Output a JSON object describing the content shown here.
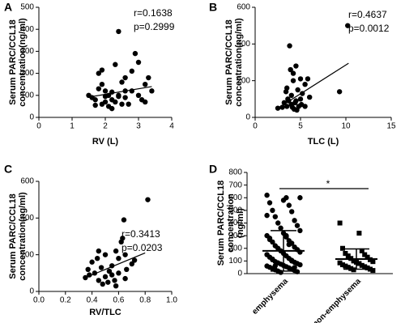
{
  "chart_data": [
    {
      "type": "scatter",
      "panel": "A",
      "ylabel": [
        "Serum PARC/CCL18",
        "concentration(ng/ml)"
      ],
      "xlabel": "RV (L)",
      "annotations": [
        "r=0.1638",
        "p=0.2999"
      ],
      "xlim": [
        0,
        4
      ],
      "xticks": [
        0,
        1,
        2,
        3,
        4
      ],
      "ylim": [
        0,
        500
      ],
      "yticks": [
        0,
        100,
        200,
        300,
        400,
        500
      ],
      "color": "#000000",
      "x": [
        1.5,
        1.6,
        1.7,
        1.8,
        1.8,
        1.9,
        1.9,
        1.7,
        2.0,
        2.0,
        2.1,
        2.1,
        2.2,
        2.2,
        2.3,
        2.3,
        2.4,
        2.4,
        2.5,
        2.5,
        2.6,
        2.6,
        2.7,
        2.8,
        2.8,
        2.9,
        3.0,
        3.0,
        3.1,
        3.2,
        3.3,
        3.4,
        1.9,
        2.0,
        2.2,
        2.6,
        2.4,
        3.2
      ],
      "values": [
        100,
        90,
        80,
        130,
        200,
        215,
        60,
        55,
        70,
        120,
        50,
        100,
        80,
        40,
        70,
        240,
        390,
        100,
        60,
        160,
        120,
        90,
        60,
        210,
        120,
        290,
        250,
        100,
        80,
        70,
        180,
        120,
        150,
        95,
        115,
        180,
        95,
        150
      ],
      "fit": {
        "x": [
          1.5,
          3.4
        ],
        "y": [
          92,
          140
        ]
      }
    },
    {
      "type": "scatter",
      "panel": "B",
      "ylabel": [
        "Serum PARC/CCL18",
        "concentration(ng/ml)"
      ],
      "xlabel": "TLC (L)",
      "annotations": [
        "r=0.4637",
        "p=0.0012"
      ],
      "xlim": [
        0,
        15
      ],
      "xticks": [
        0,
        5,
        10,
        15
      ],
      "ylim": [
        0,
        600
      ],
      "yticks": [
        0,
        200,
        400,
        600
      ],
      "color": "#000000",
      "x": [
        2.5,
        3.0,
        3.2,
        3.5,
        3.5,
        3.8,
        3.6,
        4.0,
        4.0,
        4.2,
        4.3,
        4.5,
        4.5,
        4.7,
        4.8,
        5.0,
        5.0,
        5.2,
        5.5,
        5.5,
        5.8,
        6.0,
        4.2,
        3.9,
        4.4,
        4.6,
        3.4,
        5.1,
        10.2,
        9.3,
        4.1,
        3.7
      ],
      "values": [
        50,
        55,
        80,
        60,
        160,
        390,
        100,
        120,
        70,
        200,
        45,
        280,
        90,
        150,
        60,
        210,
        100,
        130,
        180,
        60,
        210,
        110,
        240,
        260,
        80,
        40,
        140,
        70,
        500,
        140,
        55,
        90
      ],
      "fit": {
        "x": [
          2.5,
          10.3
        ],
        "y": [
          50,
          295
        ]
      }
    },
    {
      "type": "scatter",
      "panel": "C",
      "ylabel": [
        "Serum PARC/CCL18",
        "concentration(ng/ml)"
      ],
      "xlabel": "RV/TLC",
      "annotations": [
        "r=0.3413",
        "p=0.0203"
      ],
      "xlim": [
        0,
        1
      ],
      "xticks": [
        {
          "value": 0,
          "label": "0.0"
        },
        0.2,
        0.4,
        0.6,
        0.8,
        {
          "value": 1,
          "label": "1.0"
        }
      ],
      "ylim": [
        0,
        600
      ],
      "yticks": [
        0,
        200,
        400,
        600
      ],
      "color": "#000000",
      "x": [
        0.35,
        0.37,
        0.4,
        0.42,
        0.45,
        0.45,
        0.47,
        0.5,
        0.5,
        0.52,
        0.53,
        0.55,
        0.55,
        0.57,
        0.58,
        0.6,
        0.6,
        0.62,
        0.63,
        0.64,
        0.65,
        0.65,
        0.66,
        0.7,
        0.72,
        0.82,
        0.48,
        0.44,
        0.38,
        0.58
      ],
      "values": [
        75,
        120,
        160,
        100,
        60,
        220,
        130,
        80,
        200,
        50,
        110,
        90,
        140,
        60,
        30,
        180,
        100,
        270,
        290,
        390,
        70,
        200,
        120,
        150,
        170,
        500,
        40,
        180,
        90,
        220
      ],
      "fit": {
        "x": [
          0.35,
          0.8
        ],
        "y": [
          75,
          210
        ]
      }
    },
    {
      "type": "dot-plot",
      "panel": "D",
      "ylabel": [
        "Serum PARC/CCL18",
        "concentration",
        "(ng/ml)"
      ],
      "annotations": [
        "*"
      ],
      "categories": [
        "emphysema",
        "non-emphysema"
      ],
      "ylim": [
        0,
        800
      ],
      "yticks": [
        0,
        100,
        200,
        300,
        400,
        500,
        600,
        700,
        800
      ],
      "color": "#000000",
      "groups": [
        {
          "marker": "circle",
          "mean": 180,
          "sd": 160,
          "values": [
            620,
            600,
            560,
            540,
            500,
            490,
            450,
            420,
            400,
            380,
            360,
            340,
            320,
            300,
            290,
            280,
            260,
            250,
            240,
            220,
            210,
            200,
            190,
            180,
            170,
            160,
            150,
            140,
            130,
            120,
            110,
            100,
            95,
            90,
            85,
            80,
            75,
            70,
            65,
            60,
            55,
            50,
            45,
            40,
            35,
            30,
            25,
            20,
            15,
            10,
            600,
            580,
            460,
            300,
            270,
            230,
            115,
            105,
            62,
            48
          ]
        },
        {
          "marker": "square",
          "mean": 115,
          "sd": 80,
          "values": [
            400,
            320,
            200,
            180,
            160,
            150,
            140,
            130,
            120,
            110,
            100,
            95,
            90,
            85,
            80,
            70,
            65,
            60,
            55,
            50,
            45,
            40,
            35,
            30,
            25
          ]
        }
      ]
    }
  ]
}
